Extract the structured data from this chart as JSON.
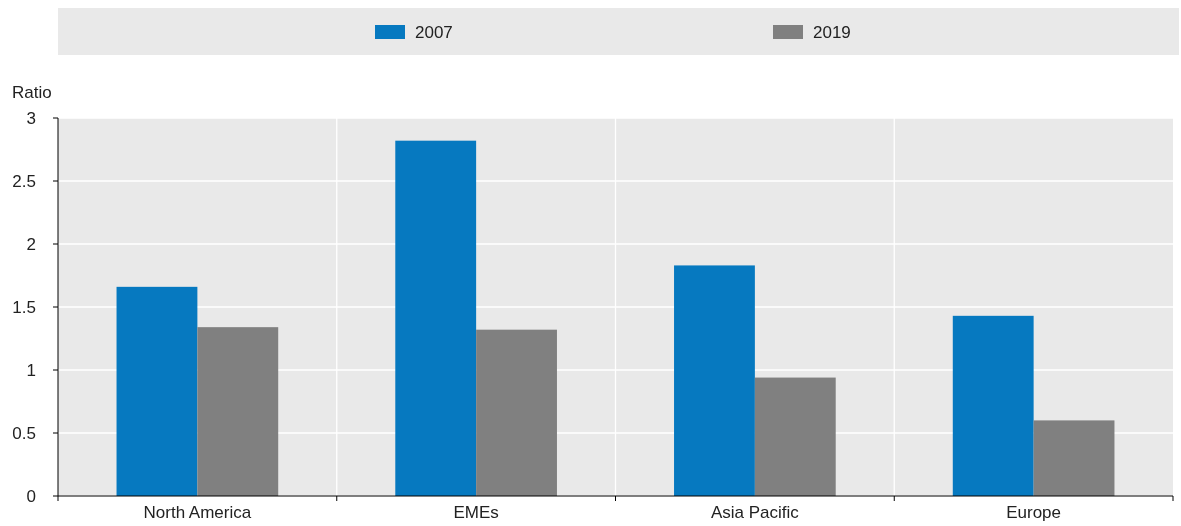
{
  "chart_data": {
    "type": "bar",
    "ylabel": "Ratio",
    "categories": [
      "North America",
      "EMEs",
      "Asia Pacific",
      "Europe"
    ],
    "series": [
      {
        "name": "2007",
        "color": "#0679c0",
        "values": [
          1.66,
          2.82,
          1.83,
          1.43
        ]
      },
      {
        "name": "2019",
        "color": "#808080",
        "values": [
          1.34,
          1.32,
          0.94,
          0.6
        ]
      }
    ],
    "ylim": [
      0,
      3
    ],
    "yticks": [
      0,
      0.5,
      1,
      1.5,
      2,
      2.5,
      3
    ],
    "grid": true,
    "legend": "top"
  }
}
